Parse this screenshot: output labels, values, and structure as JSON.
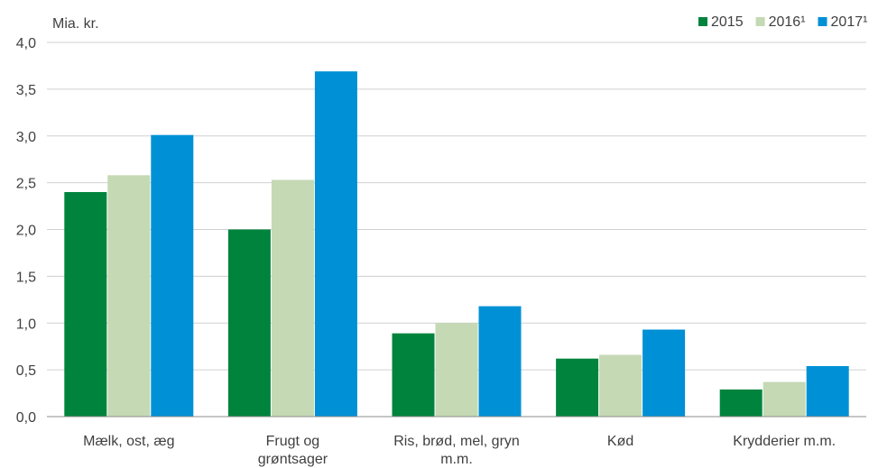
{
  "chart_data": {
    "type": "bar",
    "title": "",
    "unit_label": "Mia. kr.",
    "xlabel": "",
    "ylabel": "",
    "categories": [
      [
        "Mælk, ost, æg"
      ],
      [
        "Frugt og",
        "grøntsager"
      ],
      [
        "Ris, brød, mel, gryn",
        "m.m."
      ],
      [
        "Kød"
      ],
      [
        "Krydderier m.m."
      ]
    ],
    "series": [
      {
        "name": "2015",
        "color": "#00843d",
        "values": [
          2.4,
          2.0,
          0.89,
          0.62,
          0.29
        ]
      },
      {
        "name": "2016¹",
        "color": "#c4d9b4",
        "values": [
          2.58,
          2.53,
          1.0,
          0.66,
          0.37
        ]
      },
      {
        "name": "2017¹",
        "color": "#0090d6",
        "values": [
          3.01,
          3.69,
          1.18,
          0.93,
          0.54
        ]
      }
    ],
    "ylim": [
      0,
      4.0
    ],
    "yticks": [
      "0,0",
      "0,5",
      "1,0",
      "1,5",
      "2,0",
      "2,5",
      "3,0",
      "3,5",
      "4,0"
    ],
    "grid": true,
    "legend_position": "top-right"
  }
}
